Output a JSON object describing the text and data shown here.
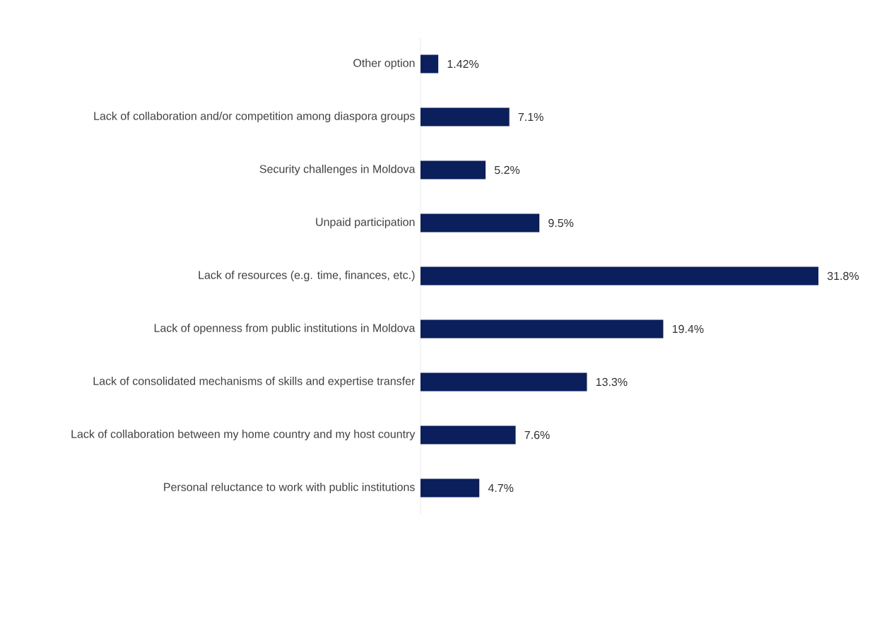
{
  "chart_data": {
    "type": "bar",
    "orientation": "horizontal",
    "categories": [
      "Other option",
      "Lack of collaboration and/or competition among diaspora groups",
      "Security challenges in Moldova",
      "Unpaid participation",
      "Lack of resources (e.g. time, finances, etc.)",
      "Lack of openness from public institutions in Moldova",
      "Lack of consolidated mechanisms of skills and expertise transfer",
      "Lack of collaboration between my home country and my host country",
      "Personal reluctance to work with public institutions"
    ],
    "values": [
      1.42,
      7.1,
      5.2,
      9.5,
      31.8,
      19.4,
      13.3,
      7.6,
      4.7
    ],
    "value_labels": [
      "1.42%",
      "7.1%",
      "5.2%",
      "9.5%",
      "31.8%",
      "19.4%",
      "13.3%",
      "7.6%",
      "4.7%"
    ],
    "color": "#0b1f5c"
  }
}
